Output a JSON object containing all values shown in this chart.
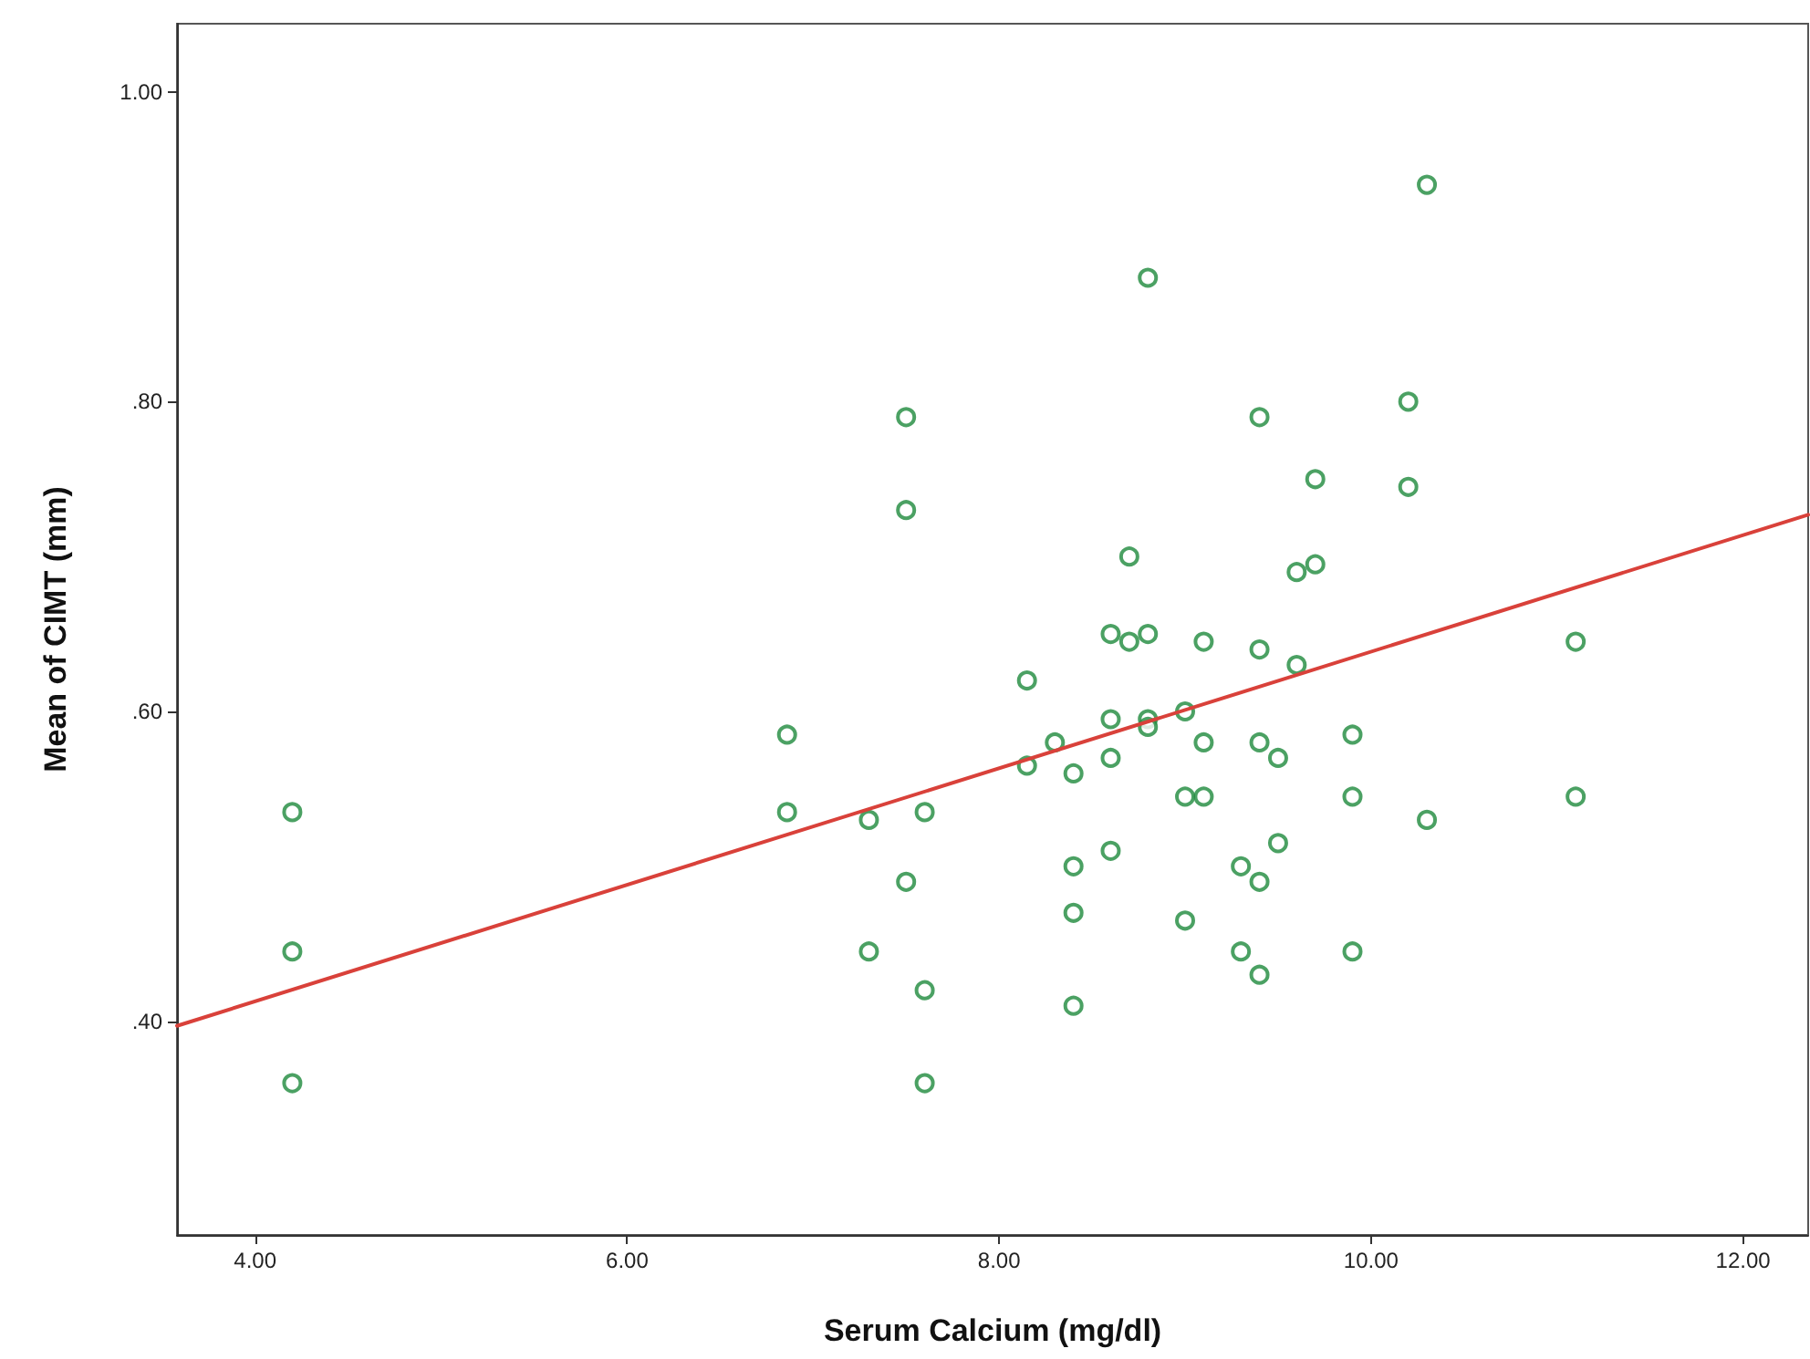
{
  "chart_data": {
    "type": "scatter",
    "xlabel": "Serum Calcium (mg/dl)",
    "ylabel": "Mean of CIMT (mm)",
    "xlim": [
      3.58,
      12.35
    ],
    "ylim": [
      0.262,
      1.044
    ],
    "xticks": [
      {
        "value": 4,
        "label": "4.00"
      },
      {
        "value": 6,
        "label": "6.00"
      },
      {
        "value": 8,
        "label": "8.00"
      },
      {
        "value": 10,
        "label": "10.00"
      },
      {
        "value": 12,
        "label": "12.00"
      }
    ],
    "yticks": [
      {
        "value": 0.4,
        "label": ".40"
      },
      {
        "value": 0.6,
        "label": ".60"
      },
      {
        "value": 0.8,
        "label": ".80"
      },
      {
        "value": 1.0,
        "label": "1.00"
      }
    ],
    "grid": false,
    "marker": "circle",
    "series": [
      {
        "color": "#1e8a3c",
        "x": [
          4.2,
          4.2,
          4.2,
          6.86,
          6.86,
          7.3,
          7.3,
          7.6,
          7.5,
          7.6,
          7.6,
          7.5,
          7.5,
          10.3,
          8.8,
          9.4,
          10.2,
          9.7,
          10.2,
          8.7,
          9.6,
          9.7,
          8.6,
          8.7,
          8.8,
          9.1,
          9.4,
          9.6,
          11.1,
          8.15,
          8.6,
          8.8,
          8.8,
          9.0,
          8.3,
          8.15,
          8.4,
          8.6,
          9.1,
          9.4,
          9.5,
          9.9,
          9.0,
          9.1,
          9.9,
          11.1,
          10.3,
          8.6,
          8.4,
          9.5,
          9.3,
          9.4,
          8.4,
          9.0,
          9.3,
          9.4,
          9.9,
          8.4
        ],
        "values": [
          0.535,
          0.445,
          0.36,
          0.585,
          0.535,
          0.53,
          0.445,
          0.535,
          0.49,
          0.42,
          0.36,
          0.79,
          0.73,
          0.94,
          0.88,
          0.79,
          0.8,
          0.75,
          0.745,
          0.7,
          0.69,
          0.695,
          0.65,
          0.645,
          0.65,
          0.645,
          0.64,
          0.63,
          0.645,
          0.62,
          0.595,
          0.595,
          0.59,
          0.6,
          0.58,
          0.565,
          0.56,
          0.57,
          0.58,
          0.58,
          0.57,
          0.585,
          0.545,
          0.545,
          0.545,
          0.545,
          0.53,
          0.51,
          0.5,
          0.515,
          0.5,
          0.49,
          0.47,
          0.465,
          0.445,
          0.43,
          0.445,
          0.41
        ]
      },
      {
        "type": "line",
        "color": "#d9413a",
        "marker": "none",
        "line_style": "solid",
        "x": [
          3.58,
          12.35
        ],
        "values": [
          0.397,
          0.727
        ]
      }
    ]
  }
}
